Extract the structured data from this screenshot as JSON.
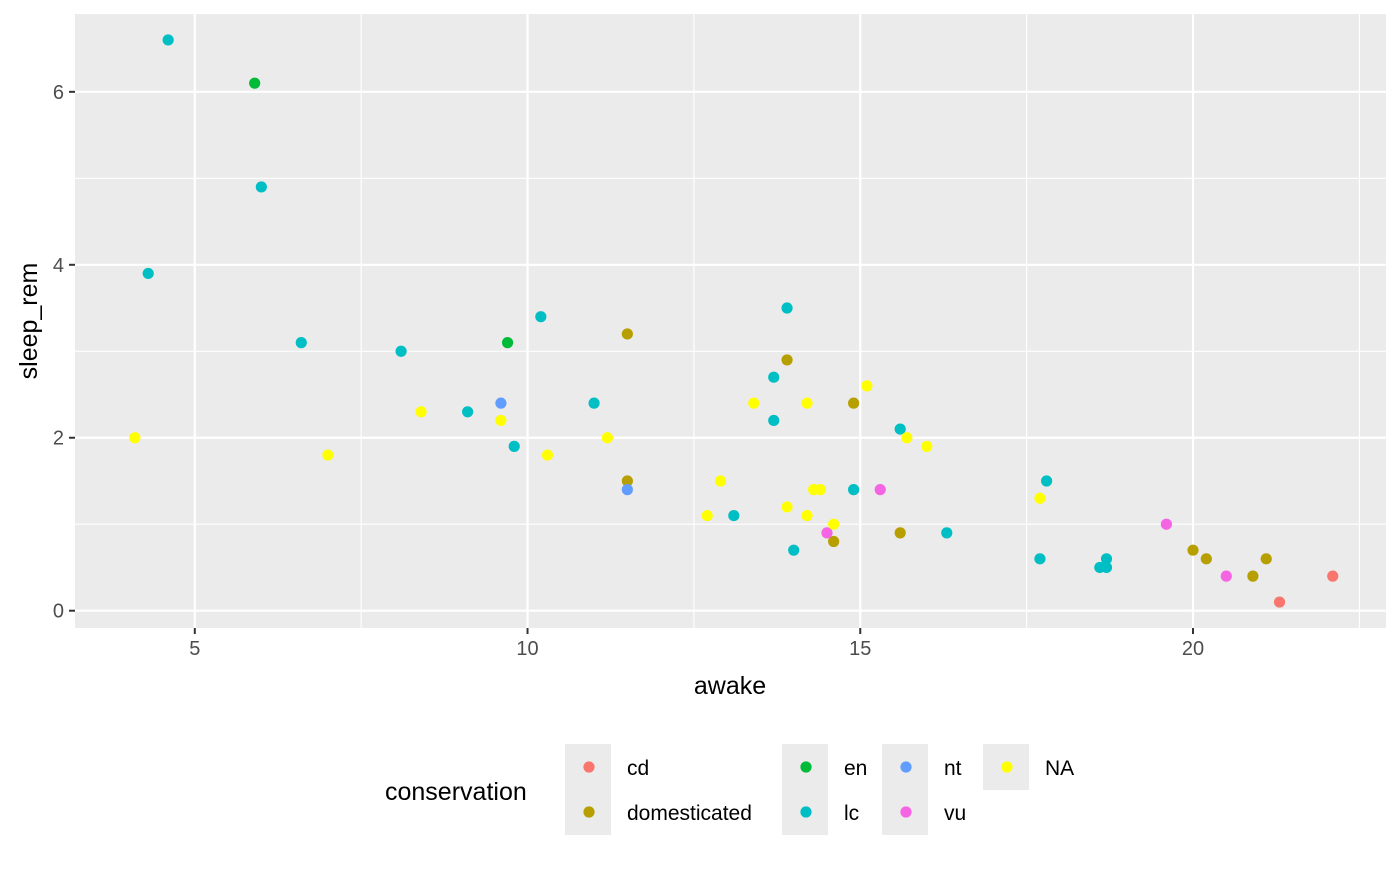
{
  "chart_data": {
    "type": "scatter",
    "xlabel": "awake",
    "ylabel": "sleep_rem",
    "xlim": [
      3.2,
      22.9
    ],
    "ylim": [
      -0.2,
      6.9
    ],
    "x_ticks": [
      5,
      10,
      15,
      20
    ],
    "x_tick_labels": [
      "5",
      "10",
      "15",
      "20"
    ],
    "x_minor_ticks": [
      7.5,
      12.5,
      17.5,
      22.5
    ],
    "y_ticks": [
      0,
      2,
      4,
      6
    ],
    "y_tick_labels": [
      "0",
      "2",
      "4",
      "6"
    ],
    "y_minor_ticks": [
      1,
      3,
      5
    ],
    "grid": true,
    "panel_background": "#ebebeb",
    "legend": {
      "title": "conservation",
      "placement": "bottom",
      "entries": [
        {
          "label": "cd",
          "color": "#F8766D"
        },
        {
          "label": "domesticated",
          "color": "#B79F00"
        },
        {
          "label": "en",
          "color": "#00BA38"
        },
        {
          "label": "lc",
          "color": "#00BFC4"
        },
        {
          "label": "nt",
          "color": "#619CFF"
        },
        {
          "label": "vu",
          "color": "#F564E3"
        },
        {
          "label": "NA",
          "color": "#FFFF00"
        }
      ]
    },
    "series": [
      {
        "name": "cd",
        "color": "#F8766D",
        "points": [
          [
            22.1,
            0.4
          ],
          [
            21.3,
            0.1
          ]
        ]
      },
      {
        "name": "domesticated",
        "color": "#B79F00",
        "points": [
          [
            11.5,
            3.2
          ],
          [
            13.9,
            2.9
          ],
          [
            14.9,
            2.4
          ],
          [
            11.5,
            1.5
          ],
          [
            14.6,
            0.8
          ],
          [
            15.6,
            0.9
          ],
          [
            20.0,
            0.7
          ],
          [
            20.2,
            0.6
          ],
          [
            20.9,
            0.4
          ],
          [
            21.1,
            0.6
          ]
        ]
      },
      {
        "name": "en",
        "color": "#00BA38",
        "points": [
          [
            5.9,
            6.1
          ],
          [
            9.7,
            3.1
          ]
        ]
      },
      {
        "name": "lc",
        "color": "#00BFC4",
        "points": [
          [
            4.6,
            6.6
          ],
          [
            6.0,
            4.9
          ],
          [
            4.3,
            3.9
          ],
          [
            6.6,
            3.1
          ],
          [
            8.1,
            3.0
          ],
          [
            10.2,
            3.4
          ],
          [
            9.1,
            2.3
          ],
          [
            9.8,
            1.9
          ],
          [
            11.0,
            2.4
          ],
          [
            13.9,
            3.5
          ],
          [
            13.7,
            2.7
          ],
          [
            13.7,
            2.2
          ],
          [
            13.1,
            1.1
          ],
          [
            14.0,
            0.7
          ],
          [
            14.9,
            1.4
          ],
          [
            15.6,
            2.1
          ],
          [
            16.3,
            0.9
          ],
          [
            17.7,
            0.6
          ],
          [
            17.8,
            1.5
          ],
          [
            18.6,
            0.5
          ],
          [
            18.7,
            0.5
          ],
          [
            18.7,
            0.6
          ]
        ]
      },
      {
        "name": "nt",
        "color": "#619CFF",
        "points": [
          [
            9.6,
            2.4
          ],
          [
            11.5,
            1.4
          ]
        ]
      },
      {
        "name": "vu",
        "color": "#F564E3",
        "points": [
          [
            14.5,
            0.9
          ],
          [
            15.3,
            1.4
          ],
          [
            19.6,
            1.0
          ],
          [
            20.5,
            0.4
          ]
        ]
      },
      {
        "name": "NA",
        "color": "#FFFF00",
        "points": [
          [
            4.1,
            2.0
          ],
          [
            7.0,
            1.8
          ],
          [
            8.4,
            2.3
          ],
          [
            9.6,
            2.2
          ],
          [
            10.3,
            1.8
          ],
          [
            11.2,
            2.0
          ],
          [
            12.7,
            1.1
          ],
          [
            12.9,
            1.5
          ],
          [
            13.4,
            2.4
          ],
          [
            13.9,
            1.2
          ],
          [
            14.2,
            2.4
          ],
          [
            14.2,
            1.1
          ],
          [
            14.3,
            1.4
          ],
          [
            14.4,
            1.4
          ],
          [
            14.6,
            1.0
          ],
          [
            15.1,
            2.6
          ],
          [
            15.7,
            2.0
          ],
          [
            16.0,
            1.9
          ],
          [
            17.7,
            1.3
          ]
        ]
      }
    ]
  }
}
